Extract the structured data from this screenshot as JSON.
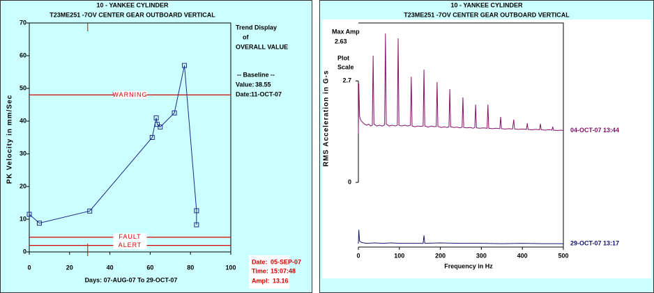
{
  "chart_data": [
    {
      "type": "line",
      "title": "10 - YANKEE CYLINDER",
      "subtitle": "T23ME251 -7OV CENTER GEAR OUTBOARD VERTICAL",
      "ylabel": "PK Velocity in mm/Sec",
      "xlabel": "Days: 07-AUG-07 To 29-OCT-07",
      "x": [
        0,
        5,
        30,
        61,
        63,
        63.5,
        65,
        72,
        77,
        83,
        83
      ],
      "values": [
        11.5,
        8.8,
        12.5,
        35,
        41,
        39,
        38.2,
        42.5,
        57,
        12.6,
        8.3
      ],
      "color": "#1c2a8c",
      "xlim": [
        0,
        100
      ],
      "ylim": [
        0,
        70
      ],
      "xticks": [
        0,
        20,
        40,
        60,
        80,
        100
      ],
      "yticks": [
        0,
        10,
        20,
        30,
        40,
        50,
        60,
        70
      ],
      "thresholds": [
        {
          "name": "WARNING",
          "value": 48,
          "color": "#d40000"
        },
        {
          "name": "FAULT",
          "value": 4.5,
          "color": "#d40000"
        },
        {
          "name": "ALERT",
          "value": 2,
          "color": "#d40000"
        }
      ],
      "cursor_x": 29,
      "legend_lines": [
        "Trend Display",
        "of",
        "OVERALL VALUE"
      ],
      "baseline_title": "-- Baseline --",
      "baseline_value_label": "Value:",
      "baseline_value": 38.55,
      "baseline_date_label": "Date:",
      "baseline_date": "11-OCT-07",
      "cursor_info": {
        "date_label": "Date:",
        "date": "05-SEP-07",
        "time_label": "Time:",
        "time": "15:07:48",
        "ampl_label": "Ampl:",
        "ampl": 13.16
      }
    },
    {
      "type": "line",
      "title": "10 - YANKEE CYLINDER",
      "subtitle": "T23ME251 -7OV CENTER GEAR OUTBOARD VERTICAL",
      "ylabel": "RMS Acceleration in G-s",
      "xlabel": "Frequency in Hz",
      "max_amp_label": "Max Amp",
      "max_amp": 2.63,
      "scale_label": [
        "Plot",
        "Scale"
      ],
      "xlim": [
        0,
        500
      ],
      "ylim": [
        -1.72,
        4.24
      ],
      "xticks": [
        0,
        100,
        200,
        300,
        400,
        500
      ],
      "yticks": [
        0,
        2.7
      ],
      "series": [
        {
          "name": "04-OCT-07 13:44",
          "color": "#85106a",
          "x": [
            0,
            1,
            3,
            6,
            10,
            15,
            20,
            25,
            30,
            34,
            36,
            38,
            45,
            52,
            58,
            64,
            66,
            68,
            75,
            82,
            90,
            95,
            97,
            99,
            106,
            113,
            120,
            127,
            129,
            131,
            138,
            145,
            152,
            158,
            160,
            162,
            170,
            178,
            185,
            190,
            192,
            194,
            202,
            210,
            216,
            221,
            223,
            225,
            233,
            240,
            248,
            253,
            255,
            257,
            265,
            272,
            280,
            284,
            286,
            288,
            296,
            305,
            314,
            316,
            318,
            327,
            336,
            345,
            347,
            349,
            358,
            367,
            376,
            379,
            381,
            390,
            400,
            410,
            412,
            414,
            423,
            432,
            442,
            444,
            446,
            455,
            465,
            472,
            474,
            476,
            485,
            495,
            500
          ],
          "values": [
            1.3,
            2.63,
            1.75,
            1.65,
            1.6,
            1.55,
            1.52,
            1.55,
            1.5,
            1.52,
            3.37,
            1.55,
            1.5,
            1.52,
            1.5,
            1.53,
            3.96,
            1.55,
            1.5,
            1.52,
            1.5,
            1.52,
            3.83,
            1.52,
            1.5,
            1.52,
            1.5,
            1.52,
            2.81,
            1.5,
            1.48,
            1.5,
            1.49,
            1.5,
            3.0,
            1.5,
            1.47,
            1.5,
            1.48,
            1.49,
            2.67,
            1.49,
            1.46,
            1.48,
            1.46,
            1.48,
            2.48,
            1.48,
            1.46,
            1.47,
            1.45,
            1.47,
            2.26,
            1.46,
            1.45,
            1.46,
            1.44,
            1.46,
            2.07,
            1.45,
            1.44,
            1.45,
            1.44,
            2.07,
            1.44,
            1.43,
            1.44,
            1.43,
            1.74,
            1.43,
            1.42,
            1.43,
            1.42,
            1.67,
            1.42,
            1.41,
            1.42,
            1.41,
            1.57,
            1.41,
            1.4,
            1.41,
            1.4,
            1.56,
            1.4,
            1.39,
            1.4,
            1.39,
            1.48,
            1.39,
            1.38,
            1.39,
            1.38
          ]
        },
        {
          "name": "29-OCT-07 13:17",
          "color": "#14166e",
          "x": [
            0,
            1,
            3,
            8,
            20,
            40,
            60,
            80,
            100,
            130,
            158,
            160,
            162,
            200,
            250,
            300,
            350,
            400,
            450,
            500
          ],
          "values": [
            -1.63,
            -1.26,
            -1.56,
            -1.6,
            -1.62,
            -1.61,
            -1.62,
            -1.61,
            -1.62,
            -1.62,
            -1.62,
            -1.41,
            -1.62,
            -1.61,
            -1.62,
            -1.62,
            -1.63,
            -1.62,
            -1.63,
            -1.63
          ]
        }
      ]
    }
  ]
}
